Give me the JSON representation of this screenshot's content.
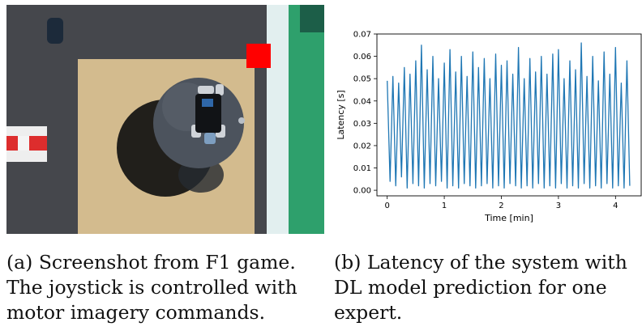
{
  "figure": {
    "subfig_a": {
      "caption_lines": [
        "(a) Screenshot from F1 game.",
        "The joystick is controlled with",
        "motor imagery commands."
      ]
    },
    "subfig_b": {
      "caption_lines": [
        "(b) Latency of the system with",
        "DL model prediction for one",
        "expert."
      ]
    }
  },
  "game_colors": {
    "track": "#45474c",
    "floor": "#d3bb8e",
    "sphere": "#4c535d",
    "shadow": "#111111",
    "marker": "#ff0000",
    "grass": "#2ea06c",
    "lane": "#e2efef"
  },
  "chart_data": {
    "type": "line",
    "title": "",
    "xlabel": "Time [min]",
    "ylabel": "Latency [s]",
    "xlim": [
      -0.18,
      4.45
    ],
    "ylim": [
      -0.0025,
      0.07
    ],
    "xticks": [
      0,
      1,
      2,
      3,
      4
    ],
    "yticks": [
      0.0,
      0.01,
      0.02,
      0.03,
      0.04,
      0.05,
      0.06,
      0.07
    ],
    "xtick_labels": [
      "0",
      "1",
      "2",
      "3",
      "4"
    ],
    "ytick_labels": [
      "0.00",
      "0.01",
      "0.02",
      "0.03",
      "0.04",
      "0.05",
      "0.06",
      "0.07"
    ],
    "grid": false,
    "color": "#1f77b4",
    "series": [
      {
        "x": [
          0.0,
          0.05,
          0.1,
          0.15,
          0.2,
          0.25,
          0.3,
          0.35,
          0.4,
          0.45,
          0.5,
          0.55,
          0.6,
          0.65,
          0.7,
          0.75,
          0.8,
          0.85,
          0.9,
          0.95,
          1.0,
          1.05,
          1.1,
          1.15,
          1.2,
          1.25,
          1.3,
          1.35,
          1.4,
          1.45,
          1.5,
          1.55,
          1.6,
          1.65,
          1.7,
          1.75,
          1.8,
          1.85,
          1.9,
          1.95,
          2.0,
          2.05,
          2.1,
          2.15,
          2.2,
          2.25,
          2.3,
          2.35,
          2.4,
          2.45,
          2.5,
          2.55,
          2.6,
          2.65,
          2.7,
          2.75,
          2.8,
          2.85,
          2.9,
          2.95,
          3.0,
          3.05,
          3.1,
          3.15,
          3.2,
          3.25,
          3.3,
          3.35,
          3.4,
          3.45,
          3.5,
          3.55,
          3.6,
          3.65,
          3.7,
          3.75,
          3.8,
          3.85,
          3.9,
          3.95,
          4.0,
          4.05,
          4.1,
          4.15,
          4.2,
          4.25
        ],
        "y": [
          0.049,
          0.004,
          0.051,
          0.002,
          0.048,
          0.006,
          0.055,
          0.001,
          0.052,
          0.003,
          0.058,
          0.002,
          0.065,
          0.001,
          0.054,
          0.003,
          0.06,
          0.002,
          0.05,
          0.004,
          0.057,
          0.001,
          0.063,
          0.002,
          0.053,
          0.001,
          0.06,
          0.003,
          0.051,
          0.002,
          0.062,
          0.001,
          0.055,
          0.002,
          0.059,
          0.003,
          0.05,
          0.001,
          0.061,
          0.002,
          0.056,
          0.001,
          0.058,
          0.003,
          0.052,
          0.002,
          0.064,
          0.001,
          0.05,
          0.002,
          0.059,
          0.001,
          0.053,
          0.003,
          0.06,
          0.001,
          0.052,
          0.002,
          0.061,
          0.001,
          0.063,
          0.003,
          0.05,
          0.001,
          0.058,
          0.002,
          0.054,
          0.001,
          0.066,
          0.003,
          0.051,
          0.001,
          0.06,
          0.002,
          0.049,
          0.001,
          0.062,
          0.003,
          0.052,
          0.001,
          0.064,
          0.002,
          0.048,
          0.001,
          0.058,
          0.002
        ]
      }
    ]
  }
}
